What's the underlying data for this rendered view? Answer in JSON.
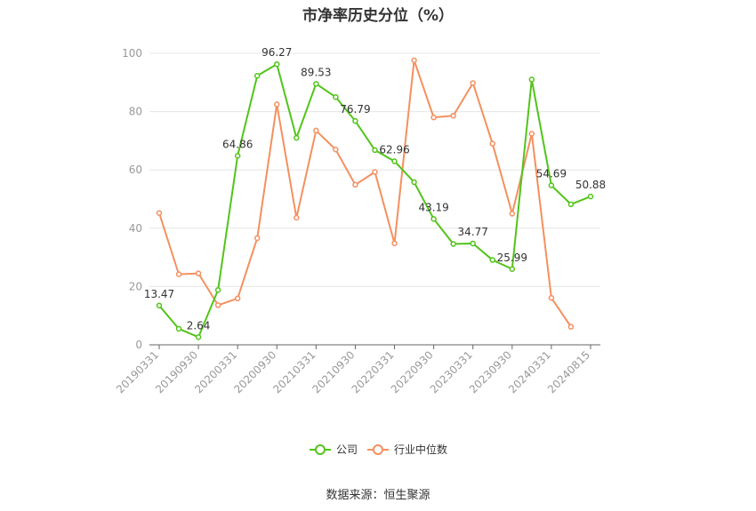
{
  "title": "市净率历史分位（%）",
  "source": "数据来源：恒生聚源",
  "chart_data": {
    "type": "line",
    "title": "市净率历史分位（%）",
    "xlabel": "",
    "ylabel": "",
    "ylim": [
      0,
      100
    ],
    "yticks": [
      0,
      20,
      40,
      60,
      80,
      100
    ],
    "grid": true,
    "legend_position": "bottom",
    "x": [
      "20190331",
      "20190630",
      "20190930",
      "20191231",
      "20200331",
      "20200630",
      "20200930",
      "20201231",
      "20210331",
      "20210630",
      "20210930",
      "20211231",
      "20220331",
      "20220630",
      "20220930",
      "20221231",
      "20230331",
      "20230630",
      "20230930",
      "20231231",
      "20240331",
      "20240630",
      "20240815"
    ],
    "xtick_labels": [
      "20190331",
      "20190930",
      "20200331",
      "20200930",
      "20210331",
      "20210930",
      "20220331",
      "20220930",
      "20230331",
      "20230930",
      "20240331",
      "20240815"
    ],
    "series": [
      {
        "name": "公司",
        "color": "#52c41a",
        "values": [
          13.47,
          5.5,
          2.64,
          18.8,
          64.86,
          92.3,
          96.27,
          71.0,
          89.53,
          85.0,
          76.79,
          66.8,
          62.96,
          55.8,
          43.19,
          34.6,
          34.77,
          29.1,
          25.99,
          91.0,
          54.69,
          48.2,
          50.88
        ],
        "labels": [
          "13.47",
          "",
          "2.64",
          "",
          "64.86",
          "",
          "96.27",
          "",
          "89.53",
          "",
          "76.79",
          "",
          "62.96",
          "",
          "43.19",
          "",
          "34.77",
          "",
          "25.99",
          "",
          "54.69",
          "",
          "50.88"
        ]
      },
      {
        "name": "行业中位数",
        "color": "#f4905f",
        "values": [
          45.2,
          24.2,
          24.5,
          13.6,
          15.9,
          36.6,
          82.5,
          43.6,
          73.5,
          67.0,
          54.9,
          59.3,
          34.8,
          97.6,
          78.0,
          78.6,
          89.8,
          69.0,
          45.0,
          72.4,
          16.1,
          6.2,
          null
        ]
      }
    ]
  }
}
